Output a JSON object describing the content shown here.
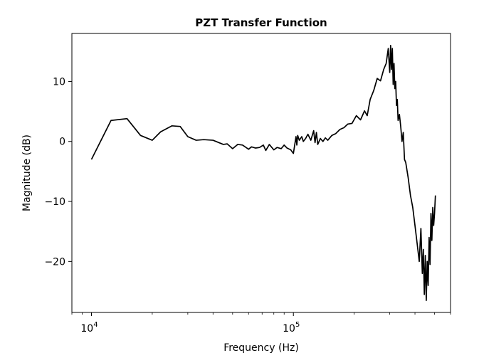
{
  "chart_data": {
    "type": "line",
    "title": "PZT Transfer Function",
    "xlabel": "Frequency (Hz)",
    "ylabel": "Magnitude (dB)",
    "xscale": "log",
    "xlim": [
      8000,
      600000
    ],
    "ylim": [
      -28.5,
      18
    ],
    "grid": false,
    "x_ticks": [
      {
        "value": 10000,
        "base": "10",
        "exp": "4"
      },
      {
        "value": 100000,
        "base": "10",
        "exp": "5"
      }
    ],
    "y_ticks": [
      {
        "value": 10,
        "label": "10"
      },
      {
        "value": 0,
        "label": "0"
      },
      {
        "value": -10,
        "label": "−10"
      },
      {
        "value": -20,
        "label": "−20"
      }
    ],
    "series": [
      {
        "color": "#000000",
        "x": [
          10000,
          12500,
          15000,
          17500,
          20000,
          22000,
          25000,
          27500,
          30000,
          33000,
          36000,
          40000,
          45000,
          47000,
          50000,
          53000,
          56000,
          60000,
          62000,
          65000,
          68000,
          71000,
          73000,
          76000,
          80000,
          83000,
          87000,
          90000,
          93000,
          97000,
          100000,
          103000,
          104000,
          105000,
          107000,
          110000,
          112000,
          115000,
          118000,
          122000,
          126000,
          128000,
          130000,
          132000,
          136000,
          140000,
          144000,
          148000,
          155000,
          162000,
          170000,
          178000,
          186000,
          195000,
          205000,
          215000,
          225000,
          232000,
          240000,
          250000,
          260000,
          270000,
          280000,
          288000,
          295000,
          300000,
          303000,
          306000,
          309000,
          312000,
          315000,
          318000,
          321000,
          324000,
          327000,
          330000,
          335000,
          340000,
          345000,
          350000,
          355000,
          360000,
          370000,
          380000,
          390000,
          400000,
          410000,
          420000,
          428000,
          435000,
          440000,
          445000,
          450000,
          455000,
          460000,
          465000,
          470000,
          475000,
          480000,
          485000,
          490000,
          495000,
          500000,
          505000
        ],
        "y": [
          -3,
          3.5,
          3.8,
          1,
          0.2,
          1.6,
          2.6,
          2.5,
          0.8,
          0.2,
          0.3,
          0.2,
          -0.5,
          -0.4,
          -1.2,
          -0.5,
          -0.6,
          -1.3,
          -0.9,
          -1.1,
          -1.0,
          -0.6,
          -1.5,
          -0.5,
          -1.4,
          -1.0,
          -1.2,
          -0.6,
          -1.1,
          -1.4,
          -2.0,
          0.8,
          -0.6,
          1.0,
          0.2,
          0.8,
          0.0,
          0.5,
          1.2,
          0.2,
          1.8,
          -0.2,
          1.5,
          -0.5,
          0.5,
          0.0,
          0.6,
          0.2,
          1.0,
          1.3,
          2.0,
          2.3,
          2.9,
          3.0,
          4.3,
          3.6,
          5.1,
          4.3,
          7.0,
          8.5,
          10.5,
          10.1,
          12.0,
          13.0,
          15.5,
          11.5,
          16.0,
          12.0,
          15.5,
          9.5,
          13.0,
          8.8,
          10.0,
          6.0,
          7.0,
          3.5,
          4.5,
          2.5,
          0.0,
          1.5,
          -3.0,
          -3.5,
          -6.0,
          -9.0,
          -11.0,
          -14.0,
          -17.0,
          -20.0,
          -14.5,
          -22.0,
          -18.0,
          -25.5,
          -19.0,
          -26.5,
          -20.0,
          -24.0,
          -16.0,
          -20.5,
          -12.0,
          -16.5,
          -11.0,
          -14.0,
          -12.0,
          -9.0
        ]
      }
    ]
  }
}
